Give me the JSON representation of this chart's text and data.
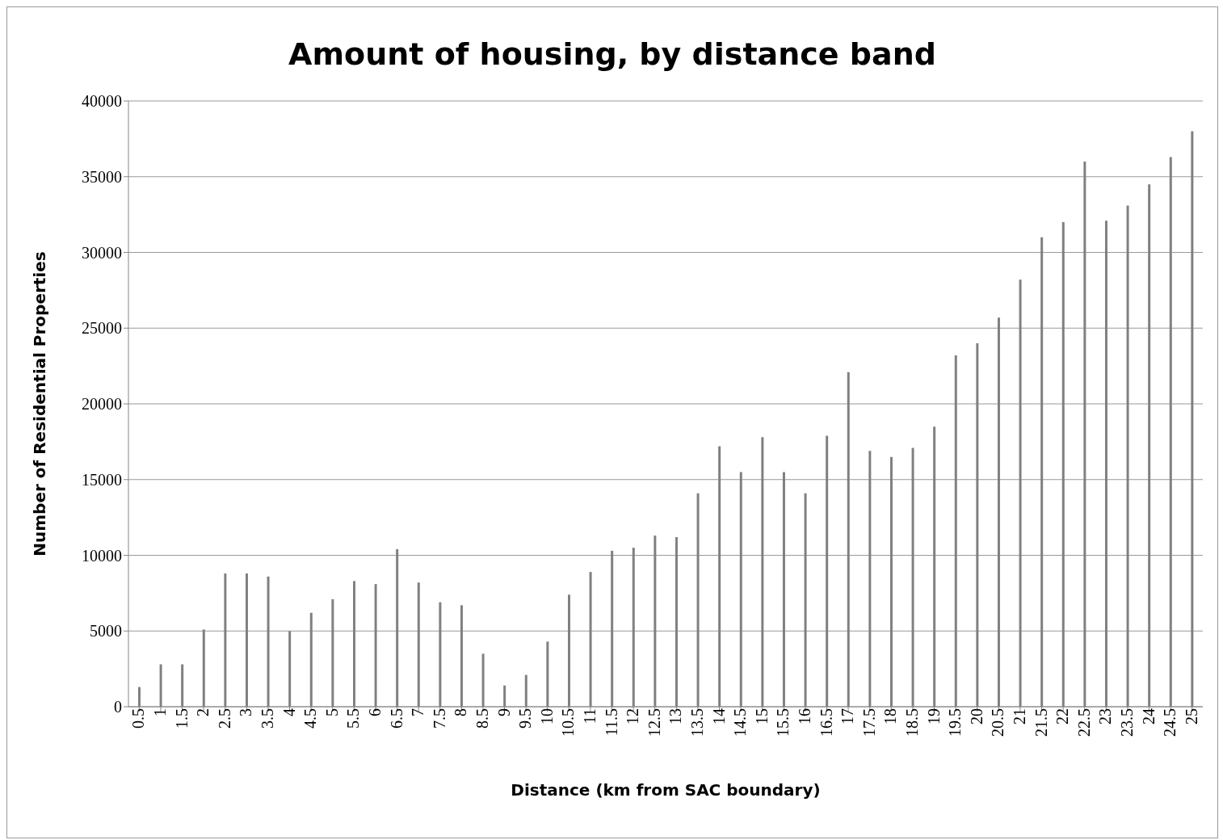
{
  "chart_data": {
    "type": "bar",
    "title": "Amount of housing, by distance band",
    "xlabel": "Distance (km from SAC boundary)",
    "ylabel": "Number of Residential Properties",
    "categories": [
      "0.5",
      "1",
      "1.5",
      "2",
      "2.5",
      "3",
      "3.5",
      "4",
      "4.5",
      "5",
      "5.5",
      "6",
      "6.5",
      "7",
      "7.5",
      "8",
      "8.5",
      "9",
      "9.5",
      "10",
      "10.5",
      "11",
      "11.5",
      "12",
      "12.5",
      "13",
      "13.5",
      "14",
      "14.5",
      "15",
      "15.5",
      "16",
      "16.5",
      "17",
      "17.5",
      "18",
      "18.5",
      "19",
      "19.5",
      "20",
      "20.5",
      "21",
      "21.5",
      "22",
      "22.5",
      "23",
      "23.5",
      "24",
      "24.5",
      "25"
    ],
    "values": [
      1300,
      2800,
      2800,
      5100,
      8800,
      8800,
      8600,
      5000,
      6200,
      7100,
      8300,
      8100,
      10400,
      8200,
      6900,
      6700,
      3500,
      1400,
      2100,
      4300,
      7400,
      8900,
      10300,
      10500,
      11300,
      11200,
      14100,
      17200,
      15500,
      17800,
      15500,
      14100,
      17900,
      22100,
      16900,
      16500,
      17100,
      18500,
      23200,
      24000,
      25700,
      28200,
      31000,
      32000,
      36000,
      32100,
      33100,
      34500,
      36300,
      38000
    ],
    "color": "#808080",
    "ylim": [
      0,
      40000
    ],
    "yticks": [
      0,
      5000,
      10000,
      15000,
      20000,
      25000,
      30000,
      35000,
      40000
    ],
    "grid": "y",
    "legend": false
  }
}
